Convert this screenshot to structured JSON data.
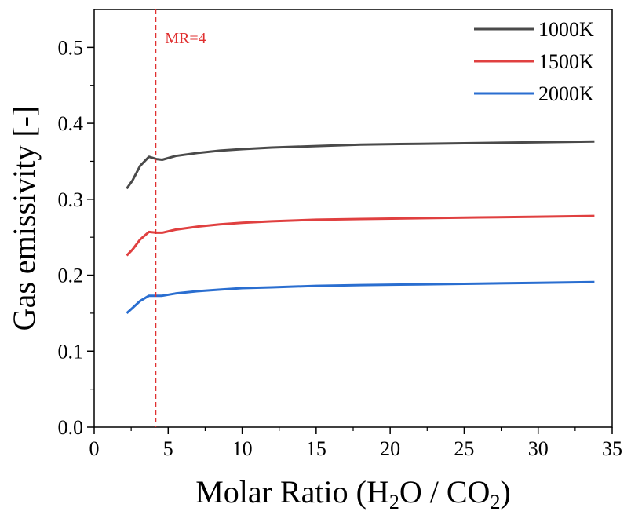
{
  "chart_data": {
    "type": "line",
    "xlabel_main": "Molar Ratio (H",
    "xlabel_sub1": "2",
    "xlabel_mid": "O / CO",
    "xlabel_sub2": "2",
    "xlabel_end": ")",
    "ylabel": "Gas emissivity [-]",
    "xlim": [
      0,
      35
    ],
    "ylim": [
      0,
      0.55
    ],
    "xticks": [
      0,
      5,
      10,
      15,
      20,
      25,
      30,
      35
    ],
    "xtick_labels": [
      "0",
      "5",
      "10",
      "15",
      "20",
      "25",
      "30",
      "35"
    ],
    "yticks": [
      0.0,
      0.1,
      0.2,
      0.3,
      0.4,
      0.5
    ],
    "ytick_labels": [
      "0.0",
      "0.1",
      "0.2",
      "0.3",
      "0.4",
      "0.5"
    ],
    "legend_position": "top-right",
    "annotation": {
      "label": "MR=4",
      "x": 4.15,
      "color": "#e03030"
    },
    "series": [
      {
        "name": "1000K",
        "color": "#4a4a4a",
        "x": [
          2.2,
          2.6,
          3.1,
          3.7,
          4.2,
          4.6,
          5.5,
          7.0,
          8.5,
          10,
          12,
          15,
          18,
          22,
          26,
          30,
          33.8
        ],
        "values": [
          0.314,
          0.325,
          0.344,
          0.356,
          0.353,
          0.352,
          0.357,
          0.361,
          0.364,
          0.366,
          0.368,
          0.37,
          0.372,
          0.373,
          0.374,
          0.375,
          0.376
        ]
      },
      {
        "name": "1500K",
        "color": "#e04040",
        "x": [
          2.2,
          2.6,
          3.1,
          3.7,
          4.2,
          4.6,
          5.5,
          7.0,
          8.5,
          10,
          12,
          15,
          18,
          22,
          26,
          30,
          33.8
        ],
        "values": [
          0.226,
          0.234,
          0.247,
          0.257,
          0.256,
          0.256,
          0.26,
          0.264,
          0.267,
          0.269,
          0.271,
          0.273,
          0.274,
          0.275,
          0.276,
          0.277,
          0.278
        ]
      },
      {
        "name": "2000K",
        "color": "#2a6ed0",
        "x": [
          2.2,
          2.6,
          3.1,
          3.7,
          4.2,
          4.6,
          5.5,
          7.0,
          8.5,
          10,
          12,
          15,
          18,
          22,
          26,
          30,
          33.8
        ],
        "values": [
          0.15,
          0.157,
          0.166,
          0.173,
          0.173,
          0.173,
          0.176,
          0.179,
          0.181,
          0.183,
          0.184,
          0.186,
          0.187,
          0.188,
          0.189,
          0.19,
          0.191
        ]
      }
    ]
  }
}
